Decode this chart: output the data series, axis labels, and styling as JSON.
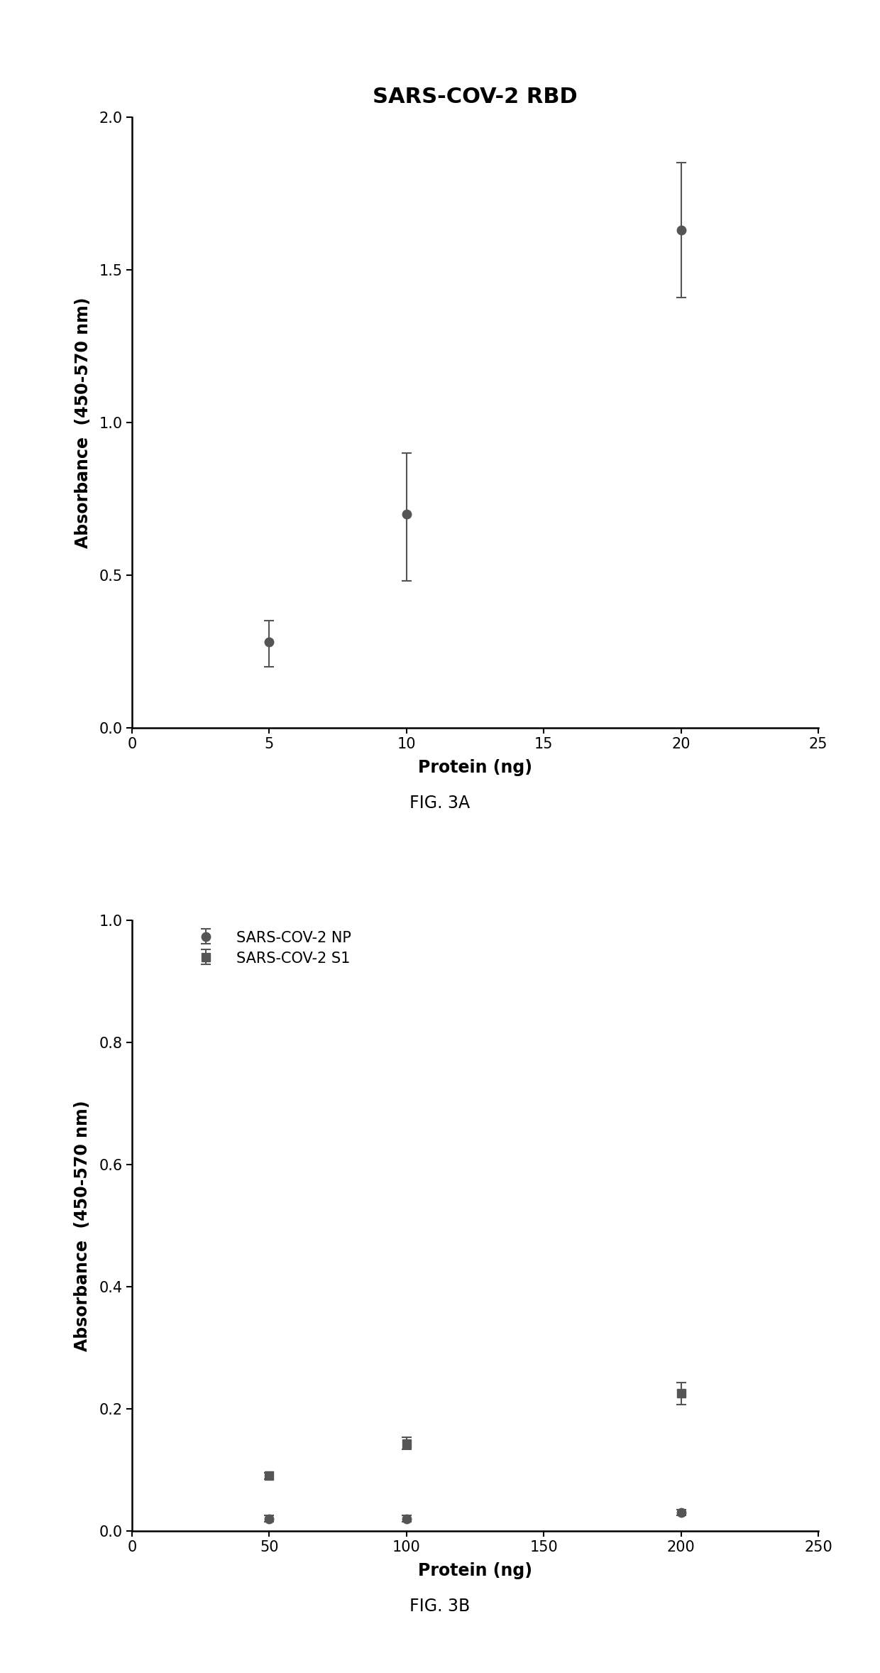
{
  "fig3a": {
    "title": "SARS-COV-2 RBD",
    "xlabel": "Protein (ng)",
    "ylabel": "Absorbance  (450-570 nm)",
    "x": [
      5,
      10,
      20
    ],
    "y": [
      0.28,
      0.7,
      1.63
    ],
    "yerr_upper": [
      0.07,
      0.2,
      0.22
    ],
    "yerr_lower": [
      0.08,
      0.22,
      0.22
    ],
    "xlim": [
      0,
      25
    ],
    "ylim": [
      0.0,
      2.0
    ],
    "xticks": [
      0,
      5,
      10,
      15,
      20,
      25
    ],
    "yticks": [
      0.0,
      0.5,
      1.0,
      1.5,
      2.0
    ],
    "color": "#555555",
    "marker": "o",
    "markersize": 9,
    "linewidth": 1.8,
    "capsize": 5,
    "fig_label": "FIG. 3A"
  },
  "fig3b": {
    "xlabel": "Protein (ng)",
    "ylabel": "Absorbance  (450-570 nm)",
    "series": [
      {
        "label": "SARS-COV-2 NP",
        "x": [
          50,
          100,
          200
        ],
        "y": [
          0.02,
          0.02,
          0.03
        ],
        "yerr_upper": [
          0.005,
          0.005,
          0.005
        ],
        "yerr_lower": [
          0.005,
          0.005,
          0.005
        ],
        "color": "#555555",
        "marker": "o",
        "markersize": 9,
        "linewidth": 1.8
      },
      {
        "label": "SARS-COV-2 S1",
        "x": [
          50,
          100,
          200
        ],
        "y": [
          0.09,
          0.143,
          0.225
        ],
        "yerr_upper": [
          0.005,
          0.01,
          0.018
        ],
        "yerr_lower": [
          0.005,
          0.01,
          0.018
        ],
        "color": "#555555",
        "marker": "s",
        "markersize": 9,
        "linewidth": 1.8
      }
    ],
    "xlim": [
      0,
      250
    ],
    "ylim": [
      0.0,
      1.0
    ],
    "xticks": [
      0,
      50,
      100,
      150,
      200,
      250
    ],
    "yticks": [
      0.0,
      0.2,
      0.4,
      0.6,
      0.8,
      1.0
    ],
    "capsize": 5,
    "fig_label": "FIG. 3B"
  },
  "background_color": "#ffffff",
  "font_color": "#000000",
  "title_fontsize": 22,
  "label_fontsize": 17,
  "tick_fontsize": 15,
  "legend_fontsize": 15,
  "fig_label_fontsize": 17
}
